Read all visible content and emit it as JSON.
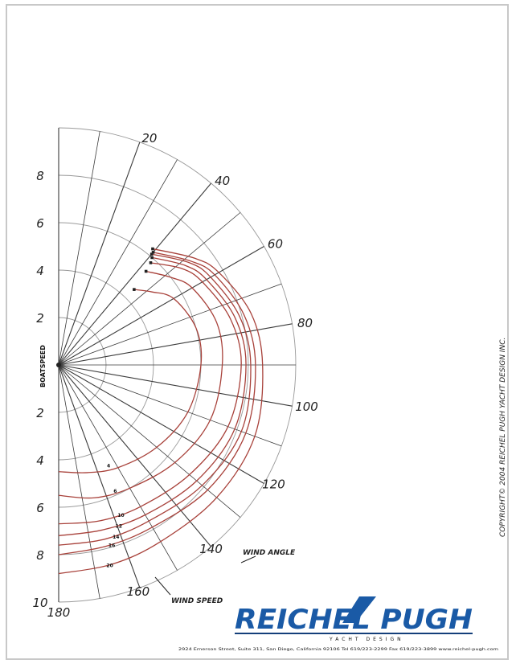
{
  "chart_data": {
    "type": "polar",
    "title": "",
    "ylabel": "BOATSPEED",
    "radial_ticks": [
      "8",
      "6",
      "4",
      "2",
      "2",
      "4",
      "6",
      "8",
      "10"
    ],
    "angle_ticks": [
      "20",
      "40",
      "60",
      "80",
      "100",
      "120",
      "140",
      "160",
      "180"
    ],
    "angle_label": "WIND ANGLE",
    "speed_label": "WIND SPEED",
    "rlim": [
      0,
      10
    ],
    "angle_range": [
      0,
      180
    ],
    "grid": true,
    "series": [
      {
        "name": "4",
        "upwind": {
          "angle": 45,
          "speed": 4.5
        },
        "points": [
          [
            52,
            5.0
          ],
          [
            60,
            5.6
          ],
          [
            75,
            6.0
          ],
          [
            90,
            6.0
          ],
          [
            110,
            5.8
          ],
          [
            130,
            5.4
          ],
          [
            150,
            5.0
          ],
          [
            165,
            4.7
          ],
          [
            180,
            4.5
          ]
        ]
      },
      {
        "name": "6",
        "upwind": {
          "angle": 43,
          "speed": 5.4
        },
        "points": [
          [
            52,
            6.0
          ],
          [
            60,
            6.5
          ],
          [
            75,
            6.9
          ],
          [
            90,
            6.9
          ],
          [
            110,
            6.8
          ],
          [
            130,
            6.4
          ],
          [
            150,
            6.0
          ],
          [
            165,
            5.8
          ],
          [
            180,
            5.5
          ]
        ]
      },
      {
        "name": "10",
        "upwind": {
          "angle": 42,
          "speed": 5.8
        },
        "points": [
          [
            52,
            6.6
          ],
          [
            60,
            7.0
          ],
          [
            75,
            7.5
          ],
          [
            90,
            7.7
          ],
          [
            110,
            7.6
          ],
          [
            130,
            7.2
          ],
          [
            150,
            6.9
          ],
          [
            165,
            6.8
          ],
          [
            180,
            6.7
          ]
        ]
      },
      {
        "name": "12",
        "upwind": {
          "angle": 41,
          "speed": 6.0
        },
        "points": [
          [
            52,
            6.8
          ],
          [
            60,
            7.2
          ],
          [
            75,
            7.7
          ],
          [
            90,
            7.9
          ],
          [
            110,
            7.9
          ],
          [
            130,
            7.6
          ],
          [
            150,
            7.3
          ],
          [
            165,
            7.2
          ],
          [
            180,
            7.2
          ]
        ]
      },
      {
        "name": "14",
        "upwind": {
          "angle": 40,
          "speed": 6.1
        },
        "points": [
          [
            52,
            7.0
          ],
          [
            60,
            7.4
          ],
          [
            75,
            7.9
          ],
          [
            90,
            8.1
          ],
          [
            110,
            8.2
          ],
          [
            130,
            7.9
          ],
          [
            150,
            7.6
          ],
          [
            165,
            7.6
          ],
          [
            180,
            7.6
          ]
        ]
      },
      {
        "name": "16",
        "upwind": {
          "angle": 40,
          "speed": 6.2
        },
        "points": [
          [
            52,
            7.1
          ],
          [
            60,
            7.6
          ],
          [
            75,
            8.1
          ],
          [
            90,
            8.3
          ],
          [
            110,
            8.4
          ],
          [
            130,
            8.2
          ],
          [
            150,
            7.9
          ],
          [
            165,
            7.9
          ],
          [
            180,
            8.0
          ]
        ]
      },
      {
        "name": "20",
        "upwind": {
          "angle": 39,
          "speed": 6.3
        },
        "points": [
          [
            52,
            7.3
          ],
          [
            60,
            7.8
          ],
          [
            75,
            8.4
          ],
          [
            90,
            8.6
          ],
          [
            110,
            8.8
          ],
          [
            130,
            8.7
          ],
          [
            150,
            8.6
          ],
          [
            165,
            8.7
          ],
          [
            180,
            8.8
          ]
        ]
      }
    ]
  },
  "footer": {
    "copyright": "COPYRIGHT© 2004 REICHEL PUGH YACHT DESIGN INC.",
    "logo_text": "REICHEL PUGH",
    "logo_sub": "YACHT DESIGN",
    "address": "2924 Emerson Street, Suite 311, San Diego, California 92106  Tel 619/223-2299  Fax 619/223-3899  www.reichel-pugh.com"
  },
  "colors": {
    "curve": "#a8413a",
    "grid": "#999999",
    "ray": "#3a3a3a",
    "logo_blue": "#1a5aa6",
    "logo_blue_dark": "#143f7a"
  }
}
